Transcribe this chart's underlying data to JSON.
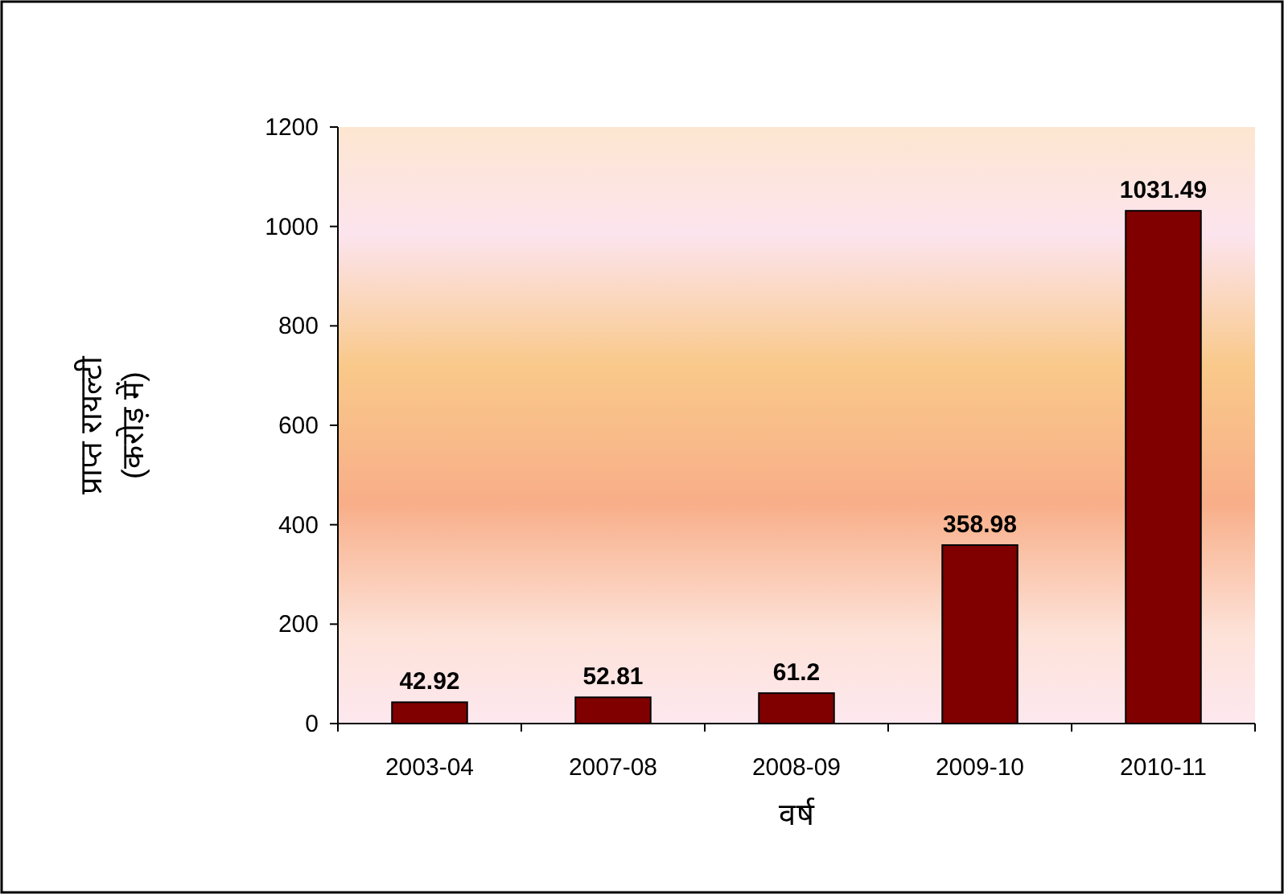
{
  "chart_data": {
    "type": "bar",
    "categories": [
      "2003-04",
      "2007-08",
      "2008-09",
      "2009-10",
      "2010-11"
    ],
    "values": [
      42.92,
      52.81,
      61.2,
      358.98,
      1031.49
    ],
    "color": "#800000",
    "ylim": [
      0,
      1200
    ],
    "yticks": [
      0,
      200,
      400,
      600,
      800,
      1000,
      1200
    ],
    "xlabel": "वर्ष",
    "ylabel": "प्राप्त रायल्टी\n(करोड़ में)",
    "data_labels": true
  }
}
